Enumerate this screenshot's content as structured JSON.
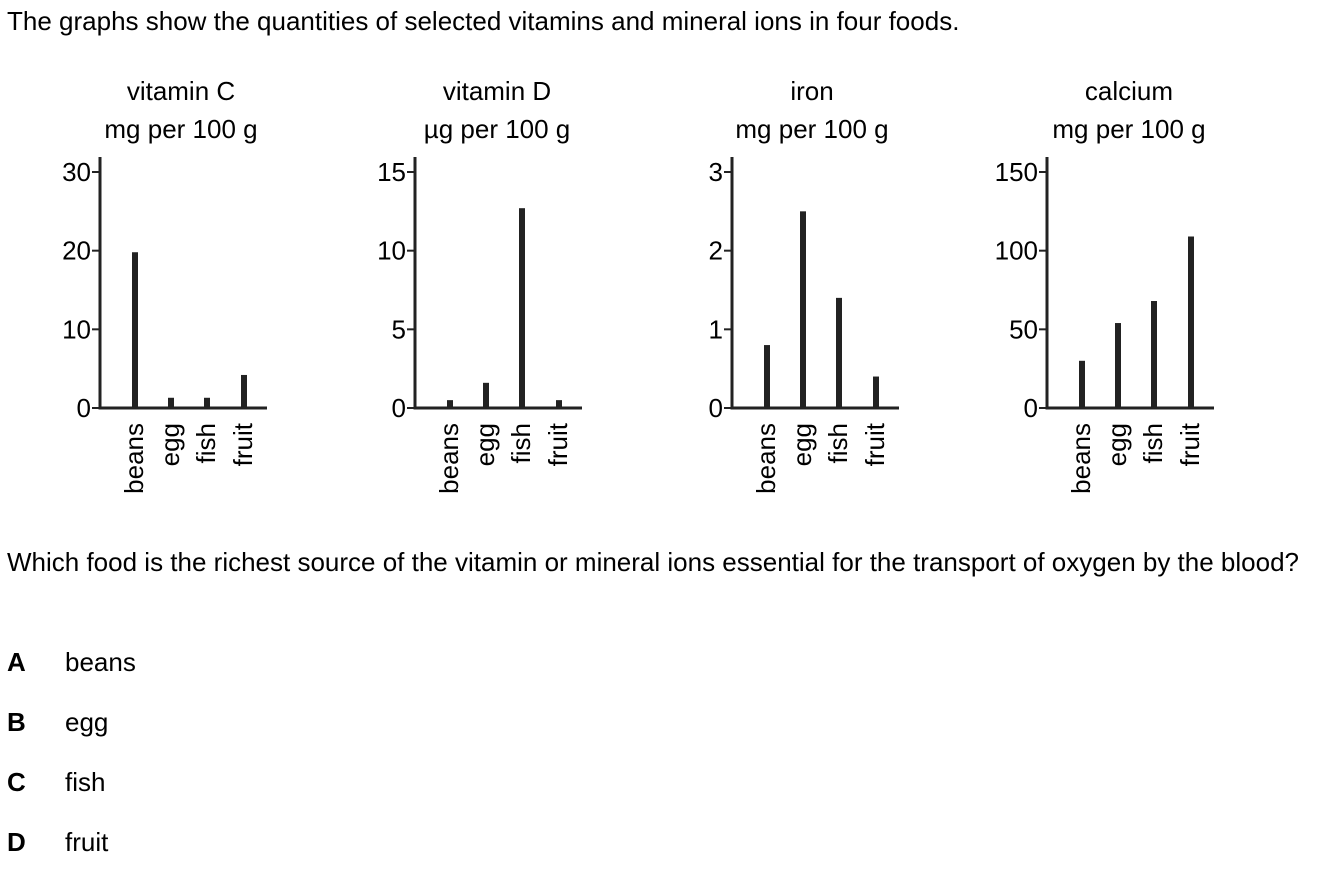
{
  "intro_text": "The graphs show the quantities of selected vitamins and mineral ions in four foods.",
  "chart_data": [
    {
      "type": "bar",
      "title": "vitamin C",
      "ylabel": "mg per 100 g",
      "categories": [
        "beans",
        "egg",
        "fish",
        "fruit"
      ],
      "values": [
        19.8,
        1.3,
        1.3,
        4.2
      ],
      "ylim": [
        0,
        30
      ],
      "yticks": [
        0,
        10,
        20,
        30
      ],
      "grid": false
    },
    {
      "type": "bar",
      "title": "vitamin D",
      "ylabel": "µg per 100 g",
      "categories": [
        "beans",
        "egg",
        "fish",
        "fruit"
      ],
      "values": [
        0.5,
        1.6,
        12.7,
        0.5
      ],
      "ylim": [
        0,
        15
      ],
      "yticks": [
        0,
        5,
        10,
        15
      ],
      "grid": false
    },
    {
      "type": "bar",
      "title": "iron",
      "ylabel": "mg per 100 g",
      "categories": [
        "beans",
        "egg",
        "fish",
        "fruit"
      ],
      "values": [
        0.8,
        2.5,
        1.4,
        0.4
      ],
      "ylim": [
        0,
        3
      ],
      "yticks": [
        0,
        1,
        2,
        3
      ],
      "grid": false
    },
    {
      "type": "bar",
      "title": "calcium",
      "ylabel": "mg per 100 g",
      "categories": [
        "beans",
        "egg",
        "fish",
        "fruit"
      ],
      "values": [
        30,
        54,
        68,
        109
      ],
      "ylim": [
        0,
        150
      ],
      "yticks": [
        0,
        50,
        100,
        150
      ],
      "grid": false
    }
  ],
  "question_text": "Which food is the richest source of the vitamin or mineral ions essential for the transport of oxygen by the blood?",
  "options": [
    {
      "letter": "A",
      "text": "beans"
    },
    {
      "letter": "B",
      "text": "egg"
    },
    {
      "letter": "C",
      "text": "fish"
    },
    {
      "letter": "D",
      "text": "fruit"
    }
  ]
}
